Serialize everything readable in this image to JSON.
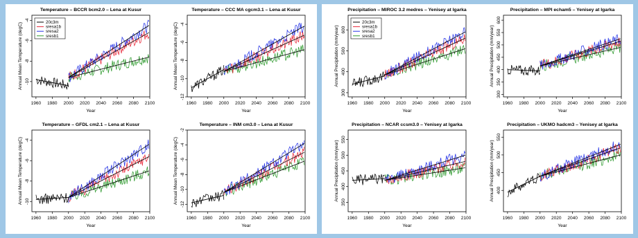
{
  "chart_data": [
    {
      "type": "line",
      "panel": "left",
      "title": "Temperature – BCCR bcm2.0 – Lena at Kusur",
      "xlabel": "Year",
      "ylabel": "Annual Mean Temperature (degC)",
      "xlim": [
        1955,
        2100
      ],
      "ylim": [
        -11.5,
        -3.5
      ],
      "xticks": [
        1960,
        1980,
        2000,
        2020,
        2040,
        2060,
        2080,
        2100
      ],
      "yticks": [
        -10,
        -8,
        -6,
        -4
      ],
      "legend": [
        "20c3m",
        "sresa1b",
        "sresa2",
        "sresb1"
      ],
      "hist": {
        "start": -10,
        "end": -10.5,
        "trend": [
          -9.8,
          -10.4
        ]
      },
      "proj": {
        "a1b": [
          -9.6,
          -5.2
        ],
        "a2": [
          -9.6,
          -4.5
        ],
        "b1": [
          -9.6,
          -7.6
        ]
      }
    },
    {
      "type": "line",
      "panel": "left",
      "title": "Temperature – CCC MA cgcm3.1 – Lena at Kusur",
      "xlabel": "Year",
      "ylabel": "Annual Mean Temperature (degC)",
      "xlim": [
        1955,
        2100
      ],
      "ylim": [
        -12,
        -3
      ],
      "xticks": [
        1960,
        1980,
        2000,
        2020,
        2040,
        2060,
        2080,
        2100
      ],
      "yticks": [
        -12,
        -10,
        -8,
        -6,
        -4
      ],
      "legend": [],
      "hist": {
        "trend": [
          -11,
          -9
        ]
      },
      "proj": {
        "a1b": [
          -9.2,
          -5.2
        ],
        "a2": [
          -9.2,
          -4.2
        ],
        "b1": [
          -9.2,
          -6.8
        ]
      }
    },
    {
      "type": "line",
      "panel": "left",
      "title": "Temperature – GFDL cm2.1 – Lena at Kusur",
      "xlabel": "Year",
      "ylabel": "Annual Mean Temperature (degC)",
      "xlim": [
        1955,
        2100
      ],
      "ylim": [
        -11,
        -3
      ],
      "xticks": [
        1960,
        1980,
        2000,
        2020,
        2040,
        2060,
        2080,
        2100
      ],
      "yticks": [
        -10,
        -8,
        -6,
        -4
      ],
      "legend": [],
      "hist": {
        "trend": [
          -9.8,
          -9.6
        ]
      },
      "proj": {
        "a1b": [
          -9.6,
          -5.6
        ],
        "a2": [
          -9.6,
          -4.4
        ],
        "b1": [
          -9.6,
          -7.0
        ]
      }
    },
    {
      "type": "line",
      "panel": "left",
      "title": "Temperature – INM cm3.0 – Lena at Kusur",
      "xlabel": "Year",
      "ylabel": "Annual Mean Temperature (degC)",
      "xlim": [
        1955,
        2100
      ],
      "ylim": [
        -13,
        -2
      ],
      "xticks": [
        1960,
        1980,
        2000,
        2020,
        2040,
        2060,
        2080,
        2100
      ],
      "yticks": [
        -12,
        -10,
        -8,
        -6,
        -4,
        -2
      ],
      "legend": [],
      "hist": {
        "trend": [
          -11.8,
          -10.8
        ]
      },
      "proj": {
        "a1b": [
          -10.4,
          -5.0
        ],
        "a2": [
          -10.4,
          -3.8
        ],
        "b1": [
          -10.4,
          -6.2
        ]
      }
    },
    {
      "type": "line",
      "panel": "right",
      "title": "Precipitation – MIROC 3.2 medres – Yenisey at Igarka",
      "xlabel": "Year",
      "ylabel": "Annual Precipitation (mm/year)",
      "xlim": [
        1955,
        2100
      ],
      "ylim": [
        280,
        670
      ],
      "xticks": [
        1960,
        1980,
        2000,
        2020,
        2040,
        2060,
        2080,
        2100
      ],
      "yticks": [
        300,
        400,
        500,
        600
      ],
      "legend": [
        "20c3m",
        "sresa1b",
        "sresa2",
        "sresb1"
      ],
      "hist": {
        "trend": [
          340,
          380
        ]
      },
      "proj": {
        "a1b": [
          385,
          560
        ],
        "a2": [
          385,
          590
        ],
        "b1": [
          385,
          510
        ]
      }
    },
    {
      "type": "line",
      "panel": "right",
      "title": "Precipitation – MPI echam5 – Yenisey at Igarka",
      "xlabel": "Year",
      "ylabel": "Annual Precipitation (mm/year)",
      "xlim": [
        1955,
        2100
      ],
      "ylim": [
        290,
        620
      ],
      "xticks": [
        1960,
        1980,
        2000,
        2020,
        2040,
        2060,
        2080,
        2100
      ],
      "yticks": [
        300,
        350,
        400,
        450,
        500,
        550,
        600
      ],
      "legend": [],
      "hist": {
        "trend": [
          400,
          395
        ]
      },
      "proj": {
        "a1b": [
          415,
          515
        ],
        "a2": [
          415,
          525
        ],
        "b1": [
          415,
          490
        ]
      }
    },
    {
      "type": "line",
      "panel": "right",
      "title": "Precipitation – NCAR ccsm3.0 – Yenisey at Igarka",
      "xlabel": "Year",
      "ylabel": "Annual Precipitation (mm/year)",
      "xlim": [
        1955,
        2100
      ],
      "ylim": [
        320,
        580
      ],
      "xticks": [
        1960,
        1980,
        2000,
        2020,
        2040,
        2060,
        2080,
        2100
      ],
      "yticks": [
        350,
        400,
        450,
        500,
        550
      ],
      "legend": [],
      "hist": {
        "trend": [
          420,
          425
        ]
      },
      "proj": {
        "a1b": [
          420,
          480
        ],
        "a2": [
          420,
          500
        ],
        "b1": [
          420,
          460
        ]
      }
    },
    {
      "type": "line",
      "panel": "right",
      "title": "Precipitation – UKMO hadcm3 – Yenisey at Igarka",
      "xlabel": "Year",
      "ylabel": "Annual Precipitation (mm/year)",
      "xlim": [
        1955,
        2100
      ],
      "ylim": [
        340,
        570
      ],
      "xticks": [
        1960,
        1980,
        2000,
        2020,
        2040,
        2060,
        2080,
        2100
      ],
      "yticks": [
        400,
        450,
        500,
        550
      ],
      "legend": [],
      "hist": {
        "trend": [
          395,
          440
        ]
      },
      "proj": {
        "a1b": [
          440,
          520
        ],
        "a2": [
          440,
          530
        ],
        "b1": [
          440,
          500
        ]
      }
    }
  ],
  "colors": {
    "hist": "#000000",
    "a1b": "#e8293a",
    "a2": "#2533e6",
    "b1": "#2f9a2f"
  }
}
